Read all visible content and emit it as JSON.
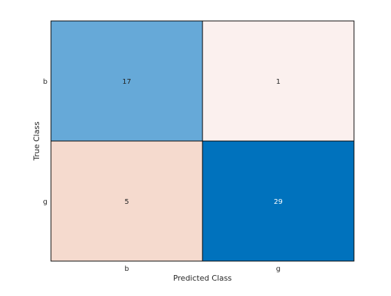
{
  "chart_data": {
    "type": "heatmap",
    "subtype": "confusion-matrix",
    "title": "",
    "xlabel": "Predicted Class",
    "ylabel": "True Class",
    "x_categories": [
      "b",
      "g"
    ],
    "y_categories": [
      "b",
      "g"
    ],
    "values": [
      [
        17,
        1
      ],
      [
        5,
        29
      ]
    ],
    "colors": {
      "diagonal_low": "#66a9d8",
      "diagonal_high": "#0072bd",
      "offdiag_low": "#fbf0ee",
      "offdiag_high": "#f5dace",
      "light_text": "#ffffff",
      "dark_text": "#222222",
      "border": "#000000"
    }
  }
}
